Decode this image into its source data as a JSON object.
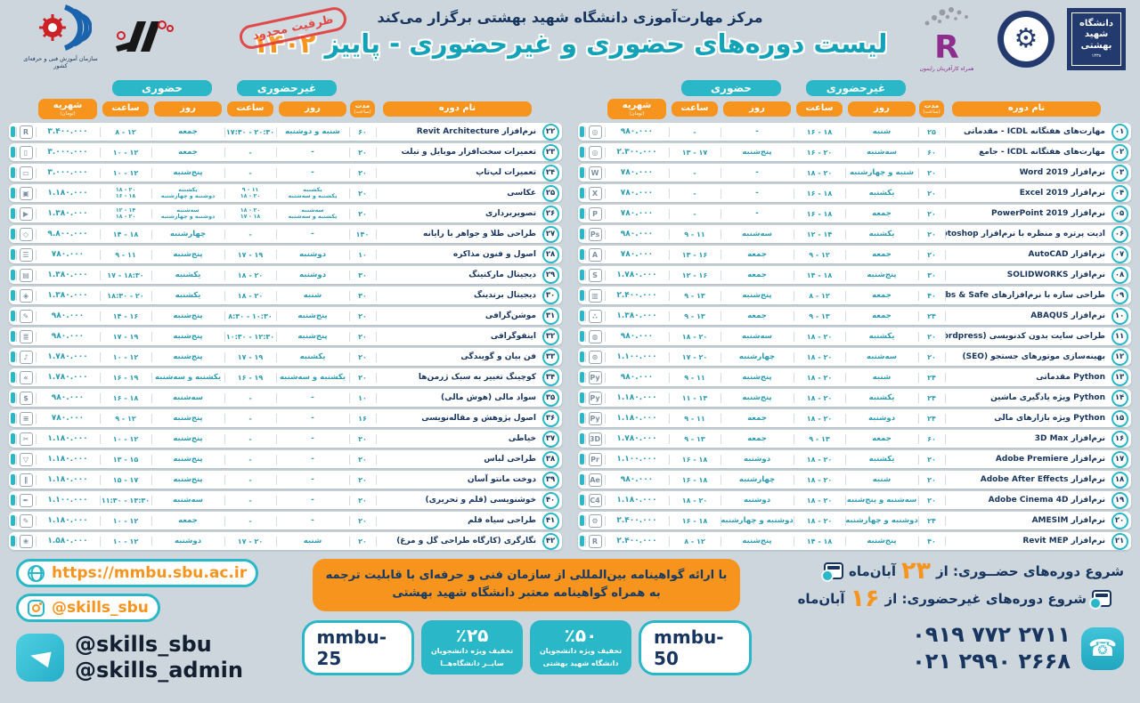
{
  "colors": {
    "bg": "#ccd6dc",
    "teal": "#2ab7c8",
    "orange": "#f7941e",
    "navy": "#17355e",
    "value_teal": "#2e9db3",
    "stamp_red": "#e23b3b"
  },
  "header": {
    "presenter_line": "مرکز مهارت‌آموزی دانشگاه شهید بهشتی برگزار می‌کند",
    "title_main": "لیست دوره‌های حضوری و غیرحضوری - پاییز",
    "title_year": "۱۴۰۲",
    "stamp": "ظرفیت محدود",
    "tvto_caption": "سازمان آموزش فنی و حرفه‌ای کشور",
    "rayamoon_letter": "R",
    "rayamoon_caption": "همراه کارآفرینان رایمون",
    "sbu_line1": "دانشگاه",
    "sbu_line2": "شهید",
    "sbu_line3": "بهشتی",
    "sbu_year": "۱۳۳۸",
    "emblem_gear": "⚙"
  },
  "table_headers": {
    "inperson": "حضوری",
    "online": "غیرحضوری",
    "name": "نام دوره",
    "duration": "مدت",
    "duration_sub": "(ساعت)",
    "day": "روز",
    "time": "ساعت",
    "fee": "شهریه",
    "fee_sub": "(تومان)"
  },
  "icon_glyphs": {
    "gauge": "◎",
    "word": "W",
    "excel": "X",
    "powerpoint": "P",
    "photoshop": "Ps",
    "autocad": "A",
    "solidworks": "S",
    "etabs": "▥",
    "abaqus": "∴",
    "wordpress": "◍",
    "seo": "⊙",
    "python": "Py",
    "3dmax": "3D",
    "premiere": "Pr",
    "aftereffects": "Ae",
    "cinema4d": "C4",
    "amesim": "⚙",
    "revit": "R",
    "mobile": "▯",
    "laptop": "▭",
    "camera": "▣",
    "video": "▶",
    "jewelry": "◇",
    "negotiation": "☰",
    "marketing": "▤",
    "branding": "◈",
    "motion": "✎",
    "infographic": "≣",
    "mic": "♪",
    "coaching": "»",
    "finance": "$",
    "document": "≡",
    "sewing": "✂",
    "dress": "▽",
    "manto": "∥",
    "pen": "✒",
    "pencil": "✎",
    "flower": "❀"
  },
  "right_rows": [
    {
      "num": "۰۱",
      "name": "مهارت‌های هفتگانه ICDL - مقدماتی",
      "dur": "۲۵",
      "oday": "شنبه",
      "otime": "۱۶ - ۱۸",
      "iday": "-",
      "itime": "-",
      "fee": "۹۸۰.۰۰۰",
      "icon": "gauge"
    },
    {
      "num": "۰۲",
      "name": "مهارت‌های هفتگانه ICDL - جامع",
      "dur": "۶۰",
      "oday": "سه‌شنبه",
      "otime": "۱۶ - ۲۰",
      "iday": "پنج‌شنبه",
      "itime": "۱۳ - ۱۷",
      "fee": "۲.۳۰۰.۰۰۰",
      "icon": "gauge"
    },
    {
      "num": "۰۳",
      "name": "نرم‌افزار Word 2019",
      "dur": "۲۰",
      "oday": "شنبه و چهارشنبه",
      "otime": "۱۸ - ۲۰",
      "iday": "-",
      "itime": "-",
      "fee": "۷۸۰.۰۰۰",
      "icon": "word"
    },
    {
      "num": "۰۴",
      "name": "نرم‌افزار Excel 2019",
      "dur": "۲۰",
      "oday": "یکشنبه",
      "otime": "۱۶ - ۱۸",
      "iday": "-",
      "itime": "-",
      "fee": "۷۸۰.۰۰۰",
      "icon": "excel"
    },
    {
      "num": "۰۵",
      "name": "نرم‌افزار PowerPoint 2019",
      "dur": "۲۰",
      "oday": "جمعه",
      "otime": "۱۶ - ۱۸",
      "iday": "-",
      "itime": "-",
      "fee": "۷۸۰.۰۰۰",
      "icon": "powerpoint"
    },
    {
      "num": "۰۶",
      "name": "ادیت پرتره و منظره با نرم‌افزار Photoshop",
      "dur": "۲۰",
      "oday": "یکشنبه",
      "otime": "۱۲ - ۱۴",
      "iday": "سه‌شنبه",
      "itime": "۹ - ۱۱",
      "fee": "۹۸۰.۰۰۰",
      "icon": "photoshop"
    },
    {
      "num": "۰۷",
      "name": "نرم‌افزار AutoCAD",
      "dur": "۲۰",
      "oday": "جمعه",
      "otime": "۹ - ۱۲",
      "iday": "جمعه",
      "itime": "۱۳ - ۱۶",
      "fee": "۷۸۰.۰۰۰",
      "icon": "autocad"
    },
    {
      "num": "۰۸",
      "name": "نرم‌افزار SOLIDWORKS",
      "dur": "۳۰",
      "oday": "پنج‌شنبه",
      "otime": "۱۴ - ۱۸",
      "iday": "جمعه",
      "itime": "۱۲ - ۱۶",
      "fee": "۱.۷۸۰.۰۰۰",
      "icon": "solidworks"
    },
    {
      "num": "۰۹",
      "name": "طراحی سازه با نرم‌افزارهای Etabs & Safe",
      "dur": "۴۰",
      "oday": "جمعه",
      "otime": "۸ - ۱۲",
      "iday": "پنج‌شنبه",
      "itime": "۹ - ۱۳",
      "fee": "۲.۴۰۰.۰۰۰",
      "icon": "etabs"
    },
    {
      "num": "۱۰",
      "name": "نرم‌افزار ABAQUS",
      "dur": "۲۴",
      "oday": "جمعه",
      "otime": "۹ - ۱۳",
      "iday": "جمعه",
      "itime": "۹ - ۱۳",
      "fee": "۱.۳۸۰.۰۰۰",
      "icon": "abaqus"
    },
    {
      "num": "۱۱",
      "name": "طراحی سایت بدون کدنویسی (Wordpress)",
      "dur": "۲۰",
      "oday": "یکشنبه",
      "otime": "۱۸ - ۲۰",
      "iday": "سه‌شنبه",
      "itime": "۱۸ - ۲۰",
      "fee": "۹۸۰.۰۰۰",
      "icon": "wordpress"
    },
    {
      "num": "۱۲",
      "name": "بهینه‌سازی موتورهای جستجو (SEO)",
      "dur": "۲۰",
      "oday": "سه‌شنبه",
      "otime": "۱۸ - ۲۰",
      "iday": "چهارشنبه",
      "itime": "۱۷ - ۲۰",
      "fee": "۱.۱۰۰.۰۰۰",
      "icon": "seo"
    },
    {
      "num": "۱۳",
      "name": "Python مقدماتی",
      "dur": "۲۴",
      "oday": "شنبه",
      "otime": "۱۸ - ۲۰",
      "iday": "پنج‌شنبه",
      "itime": "۹ - ۱۱",
      "fee": "۹۸۰.۰۰۰",
      "icon": "python"
    },
    {
      "num": "۱۴",
      "name": "Python ویژه یادگیری ماشین",
      "dur": "۲۴",
      "oday": "یکشنبه",
      "otime": "۱۸ - ۲۰",
      "iday": "پنج‌شنبه",
      "itime": "۱۱ - ۱۳",
      "fee": "۱.۱۸۰.۰۰۰",
      "icon": "python"
    },
    {
      "num": "۱۵",
      "name": "Python ویژه بازارهای مالی",
      "dur": "۲۴",
      "oday": "دوشنبه",
      "otime": "۱۸ - ۲۰",
      "iday": "جمعه",
      "itime": "۹ - ۱۱",
      "fee": "۱.۱۸۰.۰۰۰",
      "icon": "python"
    },
    {
      "num": "۱۶",
      "name": "نرم‌افزار 3D Max",
      "dur": "۶۰",
      "oday": "جمعه",
      "otime": "۹ - ۱۳",
      "iday": "جمعه",
      "itime": "۹ - ۱۳",
      "fee": "۱.۷۸۰.۰۰۰",
      "icon": "3dmax"
    },
    {
      "num": "۱۷",
      "name": "نرم‌افزار Adobe Premiere",
      "dur": "۲۰",
      "oday": "یکشنبه",
      "otime": "۱۸ - ۲۰",
      "iday": "دوشنبه",
      "itime": "۱۶ - ۱۸",
      "fee": "۱.۱۰۰.۰۰۰",
      "icon": "premiere"
    },
    {
      "num": "۱۸",
      "name": "نرم‌افزار Adobe After Effects",
      "dur": "۲۰",
      "oday": "شنبه",
      "otime": "۱۸ - ۲۰",
      "iday": "چهارشنبه",
      "itime": "۱۶ - ۱۸",
      "fee": "۹۸۰.۰۰۰",
      "icon": "aftereffects"
    },
    {
      "num": "۱۹",
      "name": "نرم‌افزار Adobe Cinema 4D",
      "dur": "۲۰",
      "oday": "سه‌شنبه و پنج‌شنبه",
      "otime": "۱۸ - ۲۰",
      "iday": "دوشنبه",
      "itime": "۱۸ - ۲۰",
      "fee": "۱.۱۸۰.۰۰۰",
      "icon": "cinema4d"
    },
    {
      "num": "۲۰",
      "name": "نرم‌افزار AMESIM",
      "dur": "۲۴",
      "oday": "دوشنبه و چهارشنبه",
      "otime": "۱۸ - ۲۰",
      "iday": "دوشنبه و چهارشنبه",
      "itime": "۱۶ - ۱۸",
      "fee": "۲.۴۰۰.۰۰۰",
      "icon": "amesim"
    },
    {
      "num": "۲۱",
      "name": "نرم‌افزار Revit MEP",
      "dur": "۴۰",
      "oday": "پنج‌شنبه",
      "otime": "۱۴ - ۱۸",
      "iday": "پنج‌شنبه",
      "itime": "۸ - ۱۲",
      "fee": "۲.۴۰۰.۰۰۰",
      "icon": "revit"
    }
  ],
  "left_rows": [
    {
      "num": "۲۲",
      "name": "نرم‌افزار Revit Architecture",
      "dur": "۶۰",
      "oday": "شنبه و دوشنبه",
      "otime": "۱۷:۳۰ - ۲۰:۳۰",
      "iday": "جمعه",
      "itime": "۸ - ۱۲",
      "fee": "۳.۴۰۰.۰۰۰",
      "icon": "revit"
    },
    {
      "num": "۲۳",
      "name": "تعمیرات سخت‌افزار موبایل و تبلت",
      "dur": "۲۰",
      "oday": "-",
      "otime": "-",
      "iday": "جمعه",
      "itime": "۱۰ - ۱۲",
      "fee": "۳.۰۰۰.۰۰۰",
      "icon": "mobile"
    },
    {
      "num": "۲۴",
      "name": "تعمیرات لپ‌تاپ",
      "dur": "۲۰",
      "oday": "-",
      "otime": "-",
      "iday": "پنج‌شنبه",
      "itime": "۱۰ - ۱۲",
      "fee": "۳.۰۰۰.۰۰۰",
      "icon": "laptop"
    },
    {
      "num": "۲۵",
      "name": "عکاسی",
      "dur": "۲۰",
      "oday": [
        "یکشنبه",
        "یکشنبه و سه‌شنبه"
      ],
      "otime": [
        "۹ - ۱۱",
        "۱۸ - ۲۰"
      ],
      "iday": [
        "یکشنبه",
        "دوشنبه و چهارشنبه"
      ],
      "itime": [
        "۱۸ - ۲۰",
        "۱۶ - ۱۸"
      ],
      "fee": "۱.۱۸۰.۰۰۰",
      "icon": "camera"
    },
    {
      "num": "۲۶",
      "name": "تصویربرداری",
      "dur": "۲۰",
      "oday": [
        "سه‌شنبه",
        "یکشنبه و سه‌شنبه"
      ],
      "otime": [
        "۱۸ - ۲۰",
        "۱۷ - ۱۸"
      ],
      "iday": [
        "سه‌شنبه",
        "دوشنبه و چهارشنبه"
      ],
      "itime": [
        "۱۲ - ۱۴",
        "۱۸ - ۲۰"
      ],
      "fee": "۱.۳۸۰.۰۰۰",
      "icon": "video"
    },
    {
      "num": "۲۷",
      "name": "طراحی طلا و جواهر با رایانه",
      "dur": "۱۴۰",
      "oday": "-",
      "otime": "-",
      "iday": "چهارشنبه",
      "itime": "۱۴ - ۱۸",
      "fee": "۹.۸۰۰.۰۰۰",
      "icon": "jewelry"
    },
    {
      "num": "۲۸",
      "name": "اصول و فنون مذاکره",
      "dur": "۱۰",
      "oday": "دوشنبه",
      "otime": "۱۷ - ۱۹",
      "iday": "پنج‌شنبه",
      "itime": "۹ - ۱۱",
      "fee": "۷۸۰.۰۰۰",
      "icon": "negotiation"
    },
    {
      "num": "۲۹",
      "name": "دیجیتال مارکتینگ",
      "dur": "۳۰",
      "oday": "دوشنبه",
      "otime": "۱۸ - ۲۰",
      "iday": "یکشنبه",
      "itime": "۱۷ - ۱۸:۳۰",
      "fee": "۱.۳۸۰.۰۰۰",
      "icon": "marketing"
    },
    {
      "num": "۳۰",
      "name": "دیجیتال برندینگ",
      "dur": "۳۰",
      "oday": "شنبه",
      "otime": "۱۸ - ۲۰",
      "iday": "یکشنبه",
      "itime": "۱۸:۳۰ - ۲۰",
      "fee": "۱.۳۸۰.۰۰۰",
      "icon": "branding"
    },
    {
      "num": "۳۱",
      "name": "موشن‌گرافی",
      "dur": "۲۰",
      "oday": "پنج‌شنبه",
      "otime": "۸:۳۰ - ۱۰:۳۰",
      "iday": "پنج‌شنبه",
      "itime": "۱۴ - ۱۶",
      "fee": "۹۸۰.۰۰۰",
      "icon": "motion"
    },
    {
      "num": "۳۲",
      "name": "اینفوگرافی",
      "dur": "۲۰",
      "oday": "پنج‌شنبه",
      "otime": "۱۰:۳۰ - ۱۲:۳۰",
      "iday": "پنج‌شنبه",
      "itime": "۱۷ - ۱۹",
      "fee": "۹۸۰.۰۰۰",
      "icon": "infographic"
    },
    {
      "num": "۳۳",
      "name": "فن بیان و گویندگی",
      "dur": "۲۰",
      "oday": "یکشنبه",
      "otime": "۱۷ - ۱۹",
      "iday": "پنج‌شنبه",
      "itime": "۱۰ - ۱۲",
      "fee": "۱.۷۸۰.۰۰۰",
      "icon": "mic"
    },
    {
      "num": "۳۴",
      "name": "کوچینگ تغییر به سبک ژرمن‌ها",
      "dur": "۲۰",
      "oday": "یکشنبه و سه‌شنبه",
      "otime": "۱۶ - ۱۹",
      "iday": "یکشنبه و سه‌شنبه",
      "itime": "۱۶ - ۱۹",
      "fee": "۱.۷۸۰.۰۰۰",
      "icon": "coaching"
    },
    {
      "num": "۳۵",
      "name": "سواد مالی (هوش مالی)",
      "dur": "۱۰",
      "oday": "-",
      "otime": "-",
      "iday": "سه‌شنبه",
      "itime": "۱۶ - ۱۸",
      "fee": "۹۸۰.۰۰۰",
      "icon": "finance"
    },
    {
      "num": "۳۶",
      "name": "اصول پژوهش و مقاله‌نویسی",
      "dur": "۱۶",
      "oday": "-",
      "otime": "-",
      "iday": "پنج‌شنبه",
      "itime": "۹ - ۱۲",
      "fee": "۷۸۰.۰۰۰",
      "icon": "document"
    },
    {
      "num": "۳۷",
      "name": "خیاطی",
      "dur": "۲۰",
      "oday": "-",
      "otime": "-",
      "iday": "پنج‌شنبه",
      "itime": "۱۰ - ۱۲",
      "fee": "۱.۱۸۰.۰۰۰",
      "icon": "sewing"
    },
    {
      "num": "۳۸",
      "name": "طراحی لباس",
      "dur": "۲۰",
      "oday": "-",
      "otime": "-",
      "iday": "پنج‌شنبه",
      "itime": "۱۳ - ۱۵",
      "fee": "۱.۱۸۰.۰۰۰",
      "icon": "dress"
    },
    {
      "num": "۳۹",
      "name": "دوخت مانتو آسان",
      "dur": "۲۰",
      "oday": "-",
      "otime": "-",
      "iday": "پنج‌شنبه",
      "itime": "۱۵ - ۱۷",
      "fee": "۱.۱۸۰.۰۰۰",
      "icon": "manto"
    },
    {
      "num": "۴۰",
      "name": "خوشنویسی (قلم و تحریری)",
      "dur": "۲۰",
      "oday": "-",
      "otime": "-",
      "iday": "سه‌شنبه",
      "itime": "۱۱:۳۰ - ۱۳:۳۰",
      "fee": "۱.۱۰۰.۰۰۰",
      "icon": "pen"
    },
    {
      "num": "۴۱",
      "name": "طراحی سیاه قلم",
      "dur": "۲۰",
      "oday": "-",
      "otime": "-",
      "iday": "جمعه",
      "itime": "۱۰ - ۱۲",
      "fee": "۱.۱۸۰.۰۰۰",
      "icon": "pencil"
    },
    {
      "num": "۴۲",
      "name": "نگارگری (کارگاه طراحی گل و مرغ)",
      "dur": "۲۰",
      "oday": "شنبه",
      "otime": "۱۷ - ۲۰",
      "iday": "دوشنبه",
      "itime": "۱۰ - ۱۲",
      "fee": "۱.۵۸۰.۰۰۰",
      "icon": "flower"
    }
  ],
  "footer": {
    "website": "https://mmbu.sbu.ac.ir",
    "instagram": "@skills_sbu",
    "telegram1": "@skills_sbu",
    "telegram2": "@skills_admin",
    "cert_line1": "با ارائه گواهینامه بین‌المللی از سازمان فنی و حرفه‌ای با قابلیت ترجمه",
    "cert_line2": "به همراه گواهینامه معتبر دانشگاه شهید بهشتی",
    "discount25": {
      "percent": "٪۲۵",
      "line1": "تخفیف ویژه دانشجویان",
      "line2": "سایــر دانشگاه‌هــا",
      "code": "mmbu-25"
    },
    "discount50": {
      "percent": "٪۵۰",
      "line1": "تخفیف ویژه دانشجویان",
      "line2": "دانشگاه شهید بهشتی",
      "code": "mmbu-50"
    },
    "start_inperson_prefix": "شروع دوره‌های حضــوری: از",
    "start_inperson_day": "۲۳",
    "start_inperson_suffix": "آبان‌ماه",
    "start_online_prefix": "شروع دوره‌های غیرحضوری: از",
    "start_online_day": "۱۶",
    "start_online_suffix": "آبان‌ماه",
    "phone1": "۰۹۱۹ ۷۷۲ ۲۷۱۱",
    "phone2": "۰۲۱ ۲۹۹۰ ۲۶۶۸",
    "phone_icon": "☎"
  }
}
